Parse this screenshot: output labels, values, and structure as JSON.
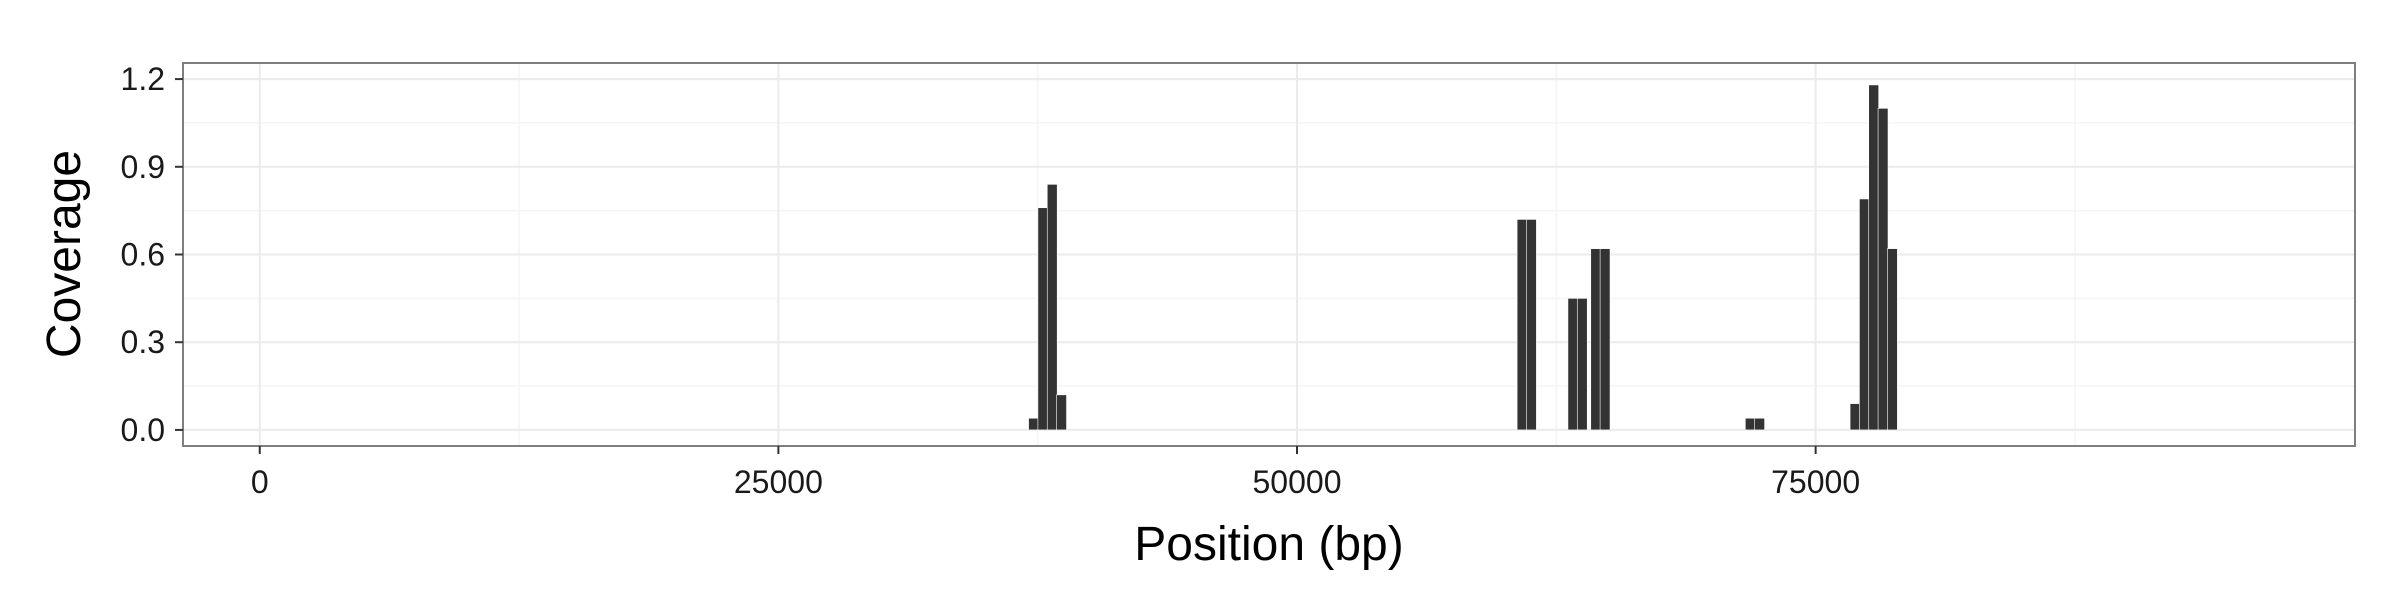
{
  "chart_data": {
    "type": "bar",
    "xlabel": "Position (bp)",
    "ylabel": "Coverage",
    "xlim": [
      -3700,
      101000
    ],
    "ylim": [
      -0.055,
      1.255
    ],
    "x_ticks": [
      0,
      25000,
      50000,
      75000
    ],
    "x_tick_labels": [
      "0",
      "25000",
      "50000",
      "75000"
    ],
    "y_ticks": [
      0.0,
      0.3,
      0.6,
      0.9,
      1.2
    ],
    "y_tick_labels": [
      "0.0",
      "0.3",
      "0.6",
      "0.9",
      "1.2"
    ],
    "bin_width_bp": 480,
    "grid": true,
    "bar_color": "#333333",
    "panel_border_color": "#7f7f7f",
    "grid_color": "#ebebeb",
    "x": [
      37300,
      37750,
      38200,
      38650,
      60850,
      61300,
      63300,
      63750,
      64400,
      64850,
      71850,
      72300,
      76900,
      77350,
      77800,
      78250,
      78700
    ],
    "values": [
      0.04,
      0.76,
      0.84,
      0.12,
      0.72,
      0.72,
      0.45,
      0.45,
      0.62,
      0.62,
      0.04,
      0.04,
      0.09,
      0.79,
      1.18,
      1.1,
      0.62
    ]
  }
}
